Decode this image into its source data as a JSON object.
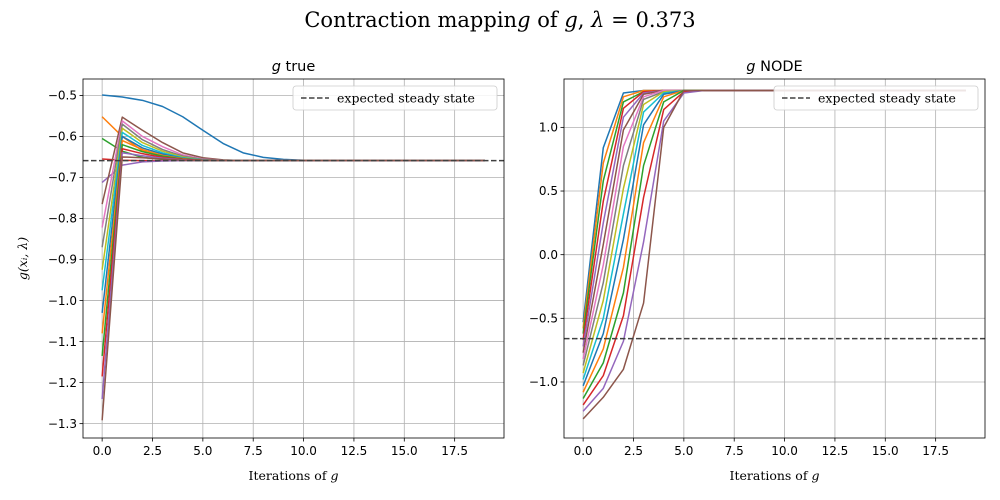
{
  "figure": {
    "suptitle": "Contraction mapping of g, λ = 0.373"
  },
  "chart_data": [
    {
      "type": "line",
      "title": "g true",
      "xlabel": "Iterations of g",
      "ylabel": "g(xᵢ, λ)",
      "xlim": [
        -0.95,
        19.95
      ],
      "ylim": [
        -1.335,
        -0.46
      ],
      "xticks": [
        0.0,
        2.5,
        5.0,
        7.5,
        10.0,
        12.5,
        15.0,
        17.5
      ],
      "xtick_labels": [
        "0.0",
        "2.5",
        "5.0",
        "7.5",
        "10.0",
        "12.5",
        "15.0",
        "17.5"
      ],
      "yticks": [
        -1.3,
        -1.2,
        -1.1,
        -1.0,
        -0.9,
        -0.8,
        -0.7,
        -0.6,
        -0.5
      ],
      "ytick_labels": [
        "−1.3",
        "−1.2",
        "−1.1",
        "−1.0",
        "−0.9",
        "−0.8",
        "−0.7",
        "−0.6",
        "−0.5"
      ],
      "grid": true,
      "legend": {
        "location": "upper right",
        "label": "expected steady state"
      },
      "reference_line": {
        "y": -0.659,
        "style": "dashed",
        "color": "#404040"
      },
      "x": [
        0,
        1,
        2,
        3,
        4,
        5,
        6,
        7,
        8,
        9,
        10,
        11,
        12,
        13,
        14,
        15,
        16,
        17,
        18,
        19
      ],
      "series": [
        {
          "color": "#1f77b4",
          "values": [
            -0.499,
            -0.504,
            -0.512,
            -0.527,
            -0.552,
            -0.585,
            -0.617,
            -0.64,
            -0.651,
            -0.656,
            -0.658,
            -0.659,
            -0.659,
            -0.659,
            -0.659,
            -0.659,
            -0.659,
            -0.659,
            -0.659,
            -0.659
          ]
        },
        {
          "color": "#ff7f0e",
          "values": [
            -0.552,
            -0.6,
            -0.635,
            -0.65,
            -0.656,
            -0.658,
            -0.659,
            -0.659,
            -0.659,
            -0.659,
            -0.659,
            -0.659,
            -0.659,
            -0.659,
            -0.659,
            -0.659,
            -0.659,
            -0.659,
            -0.659,
            -0.659
          ]
        },
        {
          "color": "#2ca02c",
          "values": [
            -0.605,
            -0.636,
            -0.651,
            -0.656,
            -0.658,
            -0.659,
            -0.659,
            -0.659,
            -0.659,
            -0.659,
            -0.659,
            -0.659,
            -0.659,
            -0.659,
            -0.659,
            -0.659,
            -0.659,
            -0.659,
            -0.659,
            -0.659
          ]
        },
        {
          "color": "#d62728",
          "values": [
            -0.655,
            -0.658,
            -0.659,
            -0.659,
            -0.659,
            -0.659,
            -0.659,
            -0.659,
            -0.659,
            -0.659,
            -0.659,
            -0.659,
            -0.659,
            -0.659,
            -0.659,
            -0.659,
            -0.659,
            -0.659,
            -0.659,
            -0.659
          ]
        },
        {
          "color": "#9467bd",
          "values": [
            -0.712,
            -0.67,
            -0.662,
            -0.66,
            -0.659,
            -0.659,
            -0.659,
            -0.659,
            -0.659,
            -0.659,
            -0.659,
            -0.659,
            -0.659,
            -0.659,
            -0.659,
            -0.659,
            -0.659,
            -0.659,
            -0.659,
            -0.659
          ]
        },
        {
          "color": "#8c564b",
          "values": [
            -0.765,
            -0.553,
            -0.585,
            -0.615,
            -0.64,
            -0.652,
            -0.657,
            -0.659,
            -0.659,
            -0.659,
            -0.659,
            -0.659,
            -0.659,
            -0.659,
            -0.659,
            -0.659,
            -0.659,
            -0.659,
            -0.659,
            -0.659
          ]
        },
        {
          "color": "#e377c2",
          "values": [
            -0.822,
            -0.562,
            -0.6,
            -0.625,
            -0.645,
            -0.655,
            -0.658,
            -0.659,
            -0.659,
            -0.659,
            -0.659,
            -0.659,
            -0.659,
            -0.659,
            -0.659,
            -0.659,
            -0.659,
            -0.659,
            -0.659,
            -0.659
          ]
        },
        {
          "color": "#7f7f7f",
          "values": [
            -0.87,
            -0.57,
            -0.608,
            -0.632,
            -0.648,
            -0.656,
            -0.658,
            -0.659,
            -0.659,
            -0.659,
            -0.659,
            -0.659,
            -0.659,
            -0.659,
            -0.659,
            -0.659,
            -0.659,
            -0.659,
            -0.659,
            -0.659
          ]
        },
        {
          "color": "#bcbd22",
          "values": [
            -0.925,
            -0.58,
            -0.615,
            -0.636,
            -0.65,
            -0.657,
            -0.659,
            -0.659,
            -0.659,
            -0.659,
            -0.659,
            -0.659,
            -0.659,
            -0.659,
            -0.659,
            -0.659,
            -0.659,
            -0.659,
            -0.659,
            -0.659
          ]
        },
        {
          "color": "#17becf",
          "values": [
            -0.975,
            -0.59,
            -0.622,
            -0.64,
            -0.652,
            -0.657,
            -0.659,
            -0.659,
            -0.659,
            -0.659,
            -0.659,
            -0.659,
            -0.659,
            -0.659,
            -0.659,
            -0.659,
            -0.659,
            -0.659,
            -0.659,
            -0.659
          ]
        },
        {
          "color": "#1f77b4",
          "values": [
            -1.03,
            -0.6,
            -0.628,
            -0.643,
            -0.653,
            -0.658,
            -0.659,
            -0.659,
            -0.659,
            -0.659,
            -0.659,
            -0.659,
            -0.659,
            -0.659,
            -0.659,
            -0.659,
            -0.659,
            -0.659,
            -0.659,
            -0.659
          ]
        },
        {
          "color": "#ff7f0e",
          "values": [
            -1.08,
            -0.61,
            -0.632,
            -0.646,
            -0.654,
            -0.658,
            -0.659,
            -0.659,
            -0.659,
            -0.659,
            -0.659,
            -0.659,
            -0.659,
            -0.659,
            -0.659,
            -0.659,
            -0.659,
            -0.659,
            -0.659,
            -0.659
          ]
        },
        {
          "color": "#2ca02c",
          "values": [
            -1.135,
            -0.62,
            -0.637,
            -0.648,
            -0.655,
            -0.658,
            -0.659,
            -0.659,
            -0.659,
            -0.659,
            -0.659,
            -0.659,
            -0.659,
            -0.659,
            -0.659,
            -0.659,
            -0.659,
            -0.659,
            -0.659,
            -0.659
          ]
        },
        {
          "color": "#d62728",
          "values": [
            -1.185,
            -0.63,
            -0.642,
            -0.651,
            -0.656,
            -0.658,
            -0.659,
            -0.659,
            -0.659,
            -0.659,
            -0.659,
            -0.659,
            -0.659,
            -0.659,
            -0.659,
            -0.659,
            -0.659,
            -0.659,
            -0.659,
            -0.659
          ]
        },
        {
          "color": "#9467bd",
          "values": [
            -1.24,
            -0.64,
            -0.647,
            -0.653,
            -0.657,
            -0.659,
            -0.659,
            -0.659,
            -0.659,
            -0.659,
            -0.659,
            -0.659,
            -0.659,
            -0.659,
            -0.659,
            -0.659,
            -0.659,
            -0.659,
            -0.659,
            -0.659
          ]
        },
        {
          "color": "#8c564b",
          "values": [
            -1.292,
            -0.65,
            -0.652,
            -0.655,
            -0.658,
            -0.659,
            -0.659,
            -0.659,
            -0.659,
            -0.659,
            -0.659,
            -0.659,
            -0.659,
            -0.659,
            -0.659,
            -0.659,
            -0.659,
            -0.659,
            -0.659,
            -0.659
          ]
        }
      ]
    },
    {
      "type": "line",
      "title": "g NODE",
      "xlabel": "Iterations of g",
      "ylabel": "",
      "xlim": [
        -0.95,
        19.95
      ],
      "ylim": [
        -1.44,
        1.38
      ],
      "xticks": [
        0.0,
        2.5,
        5.0,
        7.5,
        10.0,
        12.5,
        15.0,
        17.5
      ],
      "xtick_labels": [
        "0.0",
        "2.5",
        "5.0",
        "7.5",
        "10.0",
        "12.5",
        "15.0",
        "17.5"
      ],
      "yticks": [
        -1.0,
        -0.5,
        0.0,
        0.5,
        1.0
      ],
      "ytick_labels": [
        "−1.0",
        "−0.5",
        "0.0",
        "0.5",
        "1.0"
      ],
      "grid": true,
      "legend": {
        "location": "upper right",
        "label": "expected steady state"
      },
      "reference_line": {
        "y": -0.659,
        "style": "dashed",
        "color": "#404040"
      },
      "x": [
        0,
        1,
        2,
        3,
        4,
        5,
        6,
        7,
        8,
        9,
        10,
        11,
        12,
        13,
        14,
        15,
        16,
        17,
        18,
        19
      ],
      "series": [
        {
          "color": "#1f77b4",
          "values": [
            -0.53,
            0.84,
            1.27,
            1.29,
            1.29,
            1.29,
            1.29,
            1.29,
            1.29,
            1.29,
            1.29,
            1.29,
            1.29,
            1.29,
            1.29,
            1.29,
            1.29,
            1.29,
            1.29,
            1.29
          ]
        },
        {
          "color": "#ff7f0e",
          "values": [
            -0.58,
            0.72,
            1.24,
            1.29,
            1.29,
            1.29,
            1.29,
            1.29,
            1.29,
            1.29,
            1.29,
            1.29,
            1.29,
            1.29,
            1.29,
            1.29,
            1.29,
            1.29,
            1.29,
            1.29
          ]
        },
        {
          "color": "#2ca02c",
          "values": [
            -0.62,
            0.58,
            1.2,
            1.28,
            1.29,
            1.29,
            1.29,
            1.29,
            1.29,
            1.29,
            1.29,
            1.29,
            1.29,
            1.29,
            1.29,
            1.29,
            1.29,
            1.29,
            1.29,
            1.29
          ]
        },
        {
          "color": "#d62728",
          "values": [
            -0.67,
            0.42,
            1.15,
            1.28,
            1.29,
            1.29,
            1.29,
            1.29,
            1.29,
            1.29,
            1.29,
            1.29,
            1.29,
            1.29,
            1.29,
            1.29,
            1.29,
            1.29,
            1.29,
            1.29
          ]
        },
        {
          "color": "#9467bd",
          "values": [
            -0.72,
            0.25,
            1.08,
            1.27,
            1.29,
            1.29,
            1.29,
            1.29,
            1.29,
            1.29,
            1.29,
            1.29,
            1.29,
            1.29,
            1.29,
            1.29,
            1.29,
            1.29,
            1.29,
            1.29
          ]
        },
        {
          "color": "#8c564b",
          "values": [
            -0.77,
            0.08,
            0.98,
            1.26,
            1.29,
            1.29,
            1.29,
            1.29,
            1.29,
            1.29,
            1.29,
            1.29,
            1.29,
            1.29,
            1.29,
            1.29,
            1.29,
            1.29,
            1.29,
            1.29
          ]
        },
        {
          "color": "#e377c2",
          "values": [
            -0.82,
            -0.08,
            0.85,
            1.24,
            1.29,
            1.29,
            1.29,
            1.29,
            1.29,
            1.29,
            1.29,
            1.29,
            1.29,
            1.29,
            1.29,
            1.29,
            1.29,
            1.29,
            1.29,
            1.29
          ]
        },
        {
          "color": "#7f7f7f",
          "values": [
            -0.87,
            -0.22,
            0.7,
            1.22,
            1.28,
            1.29,
            1.29,
            1.29,
            1.29,
            1.29,
            1.29,
            1.29,
            1.29,
            1.29,
            1.29,
            1.29,
            1.29,
            1.29,
            1.29,
            1.29
          ]
        },
        {
          "color": "#bcbd22",
          "values": [
            -0.93,
            -0.36,
            0.52,
            1.18,
            1.28,
            1.29,
            1.29,
            1.29,
            1.29,
            1.29,
            1.29,
            1.29,
            1.29,
            1.29,
            1.29,
            1.29,
            1.29,
            1.29,
            1.29,
            1.29
          ]
        },
        {
          "color": "#17becf",
          "values": [
            -0.98,
            -0.5,
            0.32,
            1.12,
            1.27,
            1.29,
            1.29,
            1.29,
            1.29,
            1.29,
            1.29,
            1.29,
            1.29,
            1.29,
            1.29,
            1.29,
            1.29,
            1.29,
            1.29,
            1.29
          ]
        },
        {
          "color": "#1f77b4",
          "values": [
            -1.03,
            -0.62,
            0.12,
            1.02,
            1.26,
            1.29,
            1.29,
            1.29,
            1.29,
            1.29,
            1.29,
            1.29,
            1.29,
            1.29,
            1.29,
            1.29,
            1.29,
            1.29,
            1.29,
            1.29
          ]
        },
        {
          "color": "#ff7f0e",
          "values": [
            -1.08,
            -0.74,
            -0.1,
            0.88,
            1.24,
            1.29,
            1.29,
            1.29,
            1.29,
            1.29,
            1.29,
            1.29,
            1.29,
            1.29,
            1.29,
            1.29,
            1.29,
            1.29,
            1.29,
            1.29
          ]
        },
        {
          "color": "#2ca02c",
          "values": [
            -1.13,
            -0.85,
            -0.3,
            0.7,
            1.2,
            1.29,
            1.29,
            1.29,
            1.29,
            1.29,
            1.29,
            1.29,
            1.29,
            1.29,
            1.29,
            1.29,
            1.29,
            1.29,
            1.29,
            1.29
          ]
        },
        {
          "color": "#d62728",
          "values": [
            -1.18,
            -0.95,
            -0.48,
            0.45,
            1.14,
            1.28,
            1.29,
            1.29,
            1.29,
            1.29,
            1.29,
            1.29,
            1.29,
            1.29,
            1.29,
            1.29,
            1.29,
            1.29,
            1.29,
            1.29
          ]
        },
        {
          "color": "#9467bd",
          "values": [
            -1.23,
            -1.05,
            -0.68,
            0.1,
            1.05,
            1.27,
            1.29,
            1.29,
            1.29,
            1.29,
            1.29,
            1.29,
            1.29,
            1.29,
            1.29,
            1.29,
            1.29,
            1.29,
            1.29,
            1.29
          ]
        },
        {
          "color": "#8c564b",
          "values": [
            -1.29,
            -1.12,
            -0.9,
            -0.38,
            1.0,
            1.29,
            1.29,
            1.29,
            1.29,
            1.29,
            1.29,
            1.29,
            1.29,
            1.29,
            1.29,
            1.29,
            1.29,
            1.29,
            1.29,
            1.29
          ]
        }
      ]
    }
  ]
}
